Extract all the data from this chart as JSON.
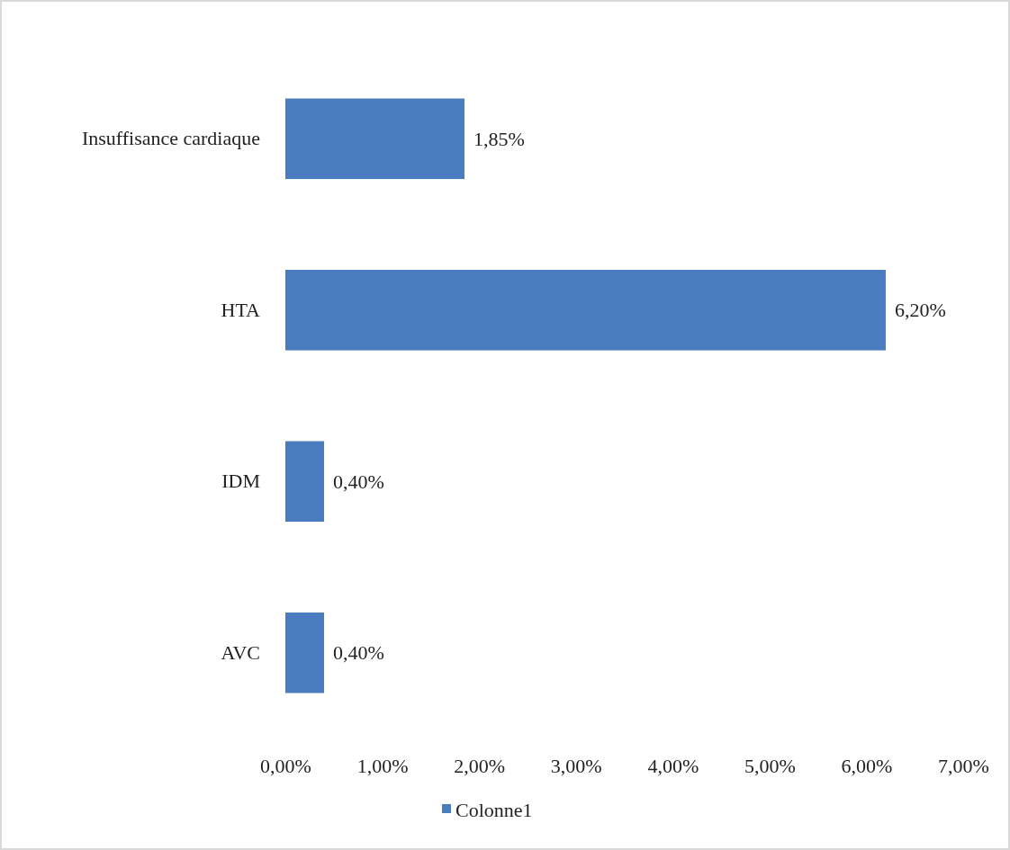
{
  "chart_data": {
    "type": "bar",
    "orientation": "horizontal",
    "categories": [
      "Insuffisance cardiaque",
      "HTA",
      "IDM",
      "AVC"
    ],
    "series": [
      {
        "name": "Colonne1",
        "color": "#4a7cc0",
        "values": [
          1.85,
          6.2,
          0.4,
          0.4
        ],
        "value_labels": [
          "1,85%",
          "6,20%",
          "0,40%",
          "0,40%"
        ]
      }
    ],
    "xlim": [
      0,
      7
    ],
    "xticks": [
      {
        "value": 0,
        "label": "0,00%"
      },
      {
        "value": 1,
        "label": "1,00%"
      },
      {
        "value": 2,
        "label": "2,00%"
      },
      {
        "value": 3,
        "label": "3,00%"
      },
      {
        "value": 4,
        "label": "4,00%"
      },
      {
        "value": 5,
        "label": "5,00%"
      },
      {
        "value": 6,
        "label": "6,00%"
      },
      {
        "value": 7,
        "label": "7,00%"
      }
    ],
    "grid": false,
    "legend": "bottom"
  }
}
